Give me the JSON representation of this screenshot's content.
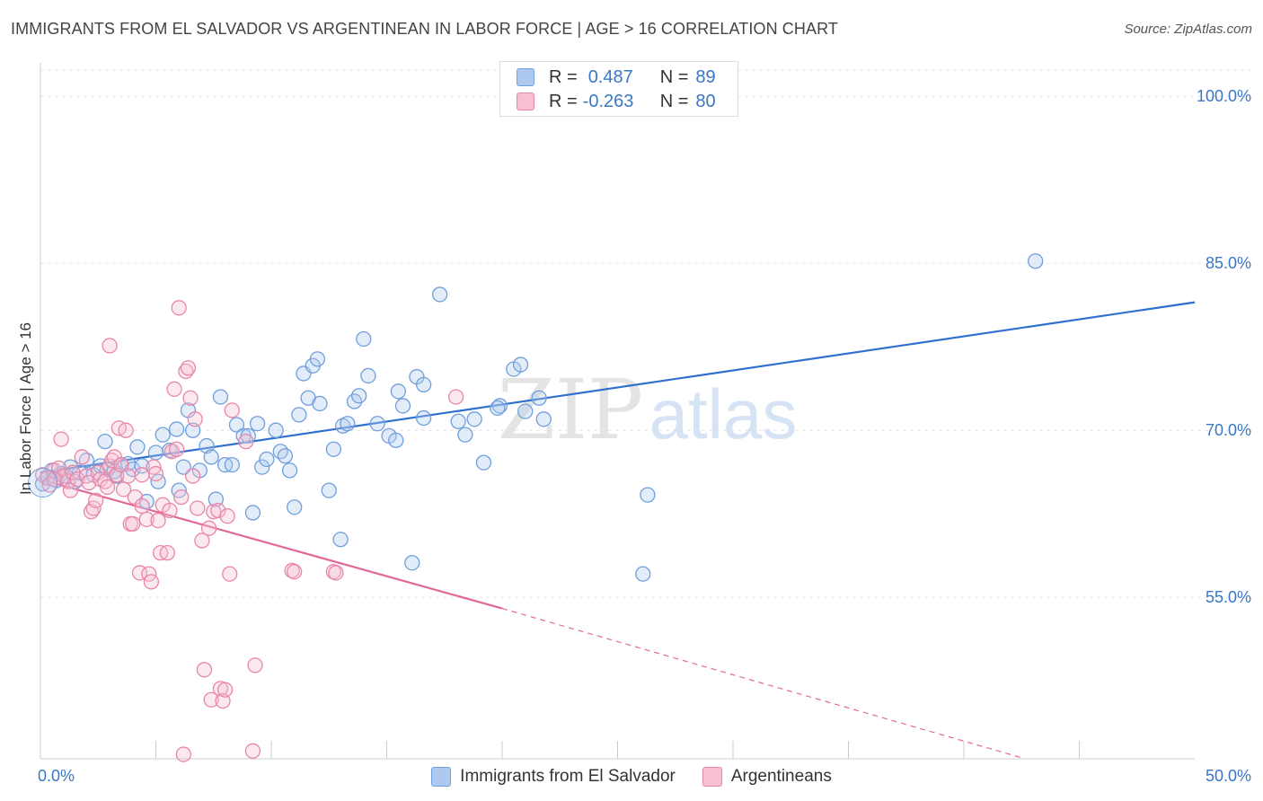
{
  "header": {
    "title": "IMMIGRANTS FROM EL SALVADOR VS ARGENTINEAN IN LABOR FORCE | AGE > 16 CORRELATION CHART",
    "source": "Source: ZipAtlas.com"
  },
  "watermark": {
    "zip": "ZIP",
    "atlas": "atlas"
  },
  "legend_top": {
    "rows": [
      {
        "r_label": "R =",
        "r_value": "0.487",
        "n_label": "N =",
        "n_value": "89",
        "color": "#aec9ef",
        "border": "#6f9fdc"
      },
      {
        "r_label": "R =",
        "r_value": "-0.263",
        "n_label": "N =",
        "n_value": "80",
        "color": "#f7bfd1",
        "border": "#e986a8"
      }
    ]
  },
  "chart_data": {
    "type": "scatter",
    "title": "IMMIGRANTS FROM EL SALVADOR VS ARGENTINEAN IN LABOR FORCE | AGE > 16 CORRELATION CHART",
    "xlabel": "",
    "ylabel": "In Labor Force | Age > 16",
    "xlim": [
      0,
      50
    ],
    "ylim": [
      40.5,
      103
    ],
    "x_tick_labels": [
      {
        "value": 0,
        "label": "0.0%"
      },
      {
        "value": 50,
        "label": "50.0%"
      }
    ],
    "y_tick_labels": [
      {
        "value": 55,
        "label": "55.0%"
      },
      {
        "value": 70,
        "label": "70.0%"
      },
      {
        "value": 85,
        "label": "85.0%"
      },
      {
        "value": 100,
        "label": "100.0%"
      }
    ],
    "grid": true,
    "legend_position": "bottom",
    "series": [
      {
        "name": "Immigrants from El Salvador",
        "color": "#6f9fdc",
        "fill": "#aec9ef",
        "line_color": "#2f6fd0",
        "trend": {
          "x0": 0,
          "y0": 66.2,
          "x1": 50,
          "y1": 81.5
        },
        "points": [
          [
            0.1,
            65.2
          ],
          [
            0.3,
            65.8
          ],
          [
            0.5,
            66.4
          ],
          [
            0.7,
            65.5
          ],
          [
            0.9,
            66.1
          ],
          [
            1.1,
            65.9
          ],
          [
            1.3,
            66.7
          ],
          [
            1.5,
            65.4
          ],
          [
            1.7,
            66.2
          ],
          [
            2.0,
            67.3
          ],
          [
            2.3,
            66.0
          ],
          [
            2.6,
            66.8
          ],
          [
            2.9,
            66.5
          ],
          [
            2.8,
            69.0
          ],
          [
            3.2,
            66.3
          ],
          [
            3.3,
            65.9
          ],
          [
            3.5,
            66.9
          ],
          [
            3.8,
            67.0
          ],
          [
            4.0,
            66.5
          ],
          [
            4.2,
            68.5
          ],
          [
            4.4,
            66.8
          ],
          [
            4.6,
            63.6
          ],
          [
            5.0,
            68.0
          ],
          [
            5.1,
            65.4
          ],
          [
            5.3,
            69.6
          ],
          [
            5.6,
            68.2
          ],
          [
            5.9,
            70.1
          ],
          [
            6.0,
            64.6
          ],
          [
            6.2,
            66.7
          ],
          [
            6.4,
            71.8
          ],
          [
            6.6,
            70.0
          ],
          [
            6.9,
            66.4
          ],
          [
            7.2,
            68.6
          ],
          [
            7.4,
            67.6
          ],
          [
            7.6,
            63.8
          ],
          [
            7.8,
            73.0
          ],
          [
            8.0,
            66.9
          ],
          [
            8.3,
            66.9
          ],
          [
            8.5,
            70.5
          ],
          [
            8.8,
            69.5
          ],
          [
            9.0,
            69.5
          ],
          [
            9.2,
            62.6
          ],
          [
            9.4,
            70.6
          ],
          [
            9.6,
            66.7
          ],
          [
            9.8,
            67.4
          ],
          [
            10.2,
            70.0
          ],
          [
            10.4,
            68.1
          ],
          [
            10.6,
            67.7
          ],
          [
            10.8,
            66.4
          ],
          [
            11.0,
            63.1
          ],
          [
            11.2,
            71.4
          ],
          [
            11.4,
            75.1
          ],
          [
            11.6,
            72.9
          ],
          [
            11.8,
            75.8
          ],
          [
            12.0,
            76.4
          ],
          [
            12.1,
            72.4
          ],
          [
            12.5,
            64.6
          ],
          [
            12.7,
            68.3
          ],
          [
            13.0,
            60.2
          ],
          [
            13.1,
            70.4
          ],
          [
            13.3,
            70.6
          ],
          [
            13.6,
            72.6
          ],
          [
            13.8,
            73.1
          ],
          [
            14.0,
            78.2
          ],
          [
            14.2,
            74.9
          ],
          [
            14.6,
            70.6
          ],
          [
            15.1,
            69.5
          ],
          [
            15.4,
            69.1
          ],
          [
            15.5,
            73.5
          ],
          [
            15.7,
            72.2
          ],
          [
            16.1,
            58.1
          ],
          [
            16.3,
            74.8
          ],
          [
            16.6,
            74.1
          ],
          [
            16.6,
            71.1
          ],
          [
            17.3,
            82.2
          ],
          [
            18.1,
            70.8
          ],
          [
            18.4,
            69.6
          ],
          [
            18.8,
            71.0
          ],
          [
            19.2,
            67.1
          ],
          [
            19.9,
            72.2
          ],
          [
            19.8,
            72.0
          ],
          [
            20.5,
            75.5
          ],
          [
            20.8,
            75.9
          ],
          [
            21.0,
            71.7
          ],
          [
            21.6,
            72.9
          ],
          [
            21.8,
            71.0
          ],
          [
            26.1,
            57.1
          ],
          [
            26.3,
            64.2
          ],
          [
            43.1,
            85.2
          ]
        ]
      },
      {
        "name": "Argentineans",
        "color": "#e986a8",
        "fill": "#f7bfd1",
        "line_color": "#e0699a",
        "trend": {
          "x0": 0,
          "y0": 65.6,
          "x1": 20,
          "y1": 54.0
        },
        "trend_dashed": {
          "x0": 20,
          "y0": 54.0,
          "x1": 42.5,
          "y1": 40.6
        },
        "points": [
          [
            0.1,
            66.0
          ],
          [
            0.3,
            65.7
          ],
          [
            0.4,
            65.1
          ],
          [
            0.6,
            66.4
          ],
          [
            0.8,
            66.6
          ],
          [
            0.9,
            69.2
          ],
          [
            1.0,
            65.9
          ],
          [
            1.2,
            65.4
          ],
          [
            1.3,
            64.6
          ],
          [
            1.4,
            66.2
          ],
          [
            1.6,
            65.6
          ],
          [
            1.8,
            67.6
          ],
          [
            2.0,
            65.9
          ],
          [
            2.1,
            65.3
          ],
          [
            2.2,
            62.7
          ],
          [
            2.3,
            63.0
          ],
          [
            2.5,
            66.2
          ],
          [
            2.6,
            65.6
          ],
          [
            2.8,
            65.4
          ],
          [
            2.9,
            64.9
          ],
          [
            3.0,
            66.8
          ],
          [
            3.1,
            67.3
          ],
          [
            3.2,
            67.6
          ],
          [
            3.3,
            66.0
          ],
          [
            3.4,
            70.2
          ],
          [
            3.5,
            66.9
          ],
          [
            3.6,
            64.7
          ],
          [
            3.7,
            70.0
          ],
          [
            3.8,
            65.9
          ],
          [
            3.9,
            61.6
          ],
          [
            4.0,
            61.6
          ],
          [
            4.1,
            64.0
          ],
          [
            4.3,
            57.2
          ],
          [
            4.4,
            66.0
          ],
          [
            4.6,
            62.0
          ],
          [
            4.7,
            57.1
          ],
          [
            4.8,
            56.4
          ],
          [
            4.9,
            66.7
          ],
          [
            5.0,
            66.1
          ],
          [
            5.1,
            61.9
          ],
          [
            5.2,
            59.0
          ],
          [
            5.3,
            63.3
          ],
          [
            5.5,
            59.0
          ],
          [
            5.6,
            62.8
          ],
          [
            5.7,
            68.1
          ],
          [
            5.8,
            73.7
          ],
          [
            5.9,
            68.3
          ],
          [
            6.0,
            81.0
          ],
          [
            6.1,
            64.0
          ],
          [
            6.3,
            75.3
          ],
          [
            6.4,
            75.6
          ],
          [
            6.5,
            72.9
          ],
          [
            6.6,
            65.9
          ],
          [
            6.7,
            71.0
          ],
          [
            6.8,
            63.0
          ],
          [
            7.0,
            60.1
          ],
          [
            7.1,
            48.5
          ],
          [
            7.3,
            61.2
          ],
          [
            7.4,
            45.8
          ],
          [
            7.5,
            62.7
          ],
          [
            7.7,
            62.8
          ],
          [
            7.8,
            46.8
          ],
          [
            7.9,
            45.7
          ],
          [
            8.0,
            46.7
          ],
          [
            8.1,
            62.3
          ],
          [
            8.2,
            57.1
          ],
          [
            8.3,
            71.8
          ],
          [
            8.9,
            69.0
          ],
          [
            9.2,
            41.2
          ],
          [
            9.3,
            48.9
          ],
          [
            10.9,
            57.4
          ],
          [
            11.0,
            57.3
          ],
          [
            12.7,
            57.3
          ],
          [
            12.8,
            57.2
          ],
          [
            3.0,
            77.6
          ],
          [
            2.4,
            63.7
          ],
          [
            4.4,
            63.2
          ],
          [
            0.6,
            65.6
          ],
          [
            6.2,
            40.9
          ],
          [
            18.0,
            73.0
          ]
        ]
      }
    ]
  }
}
